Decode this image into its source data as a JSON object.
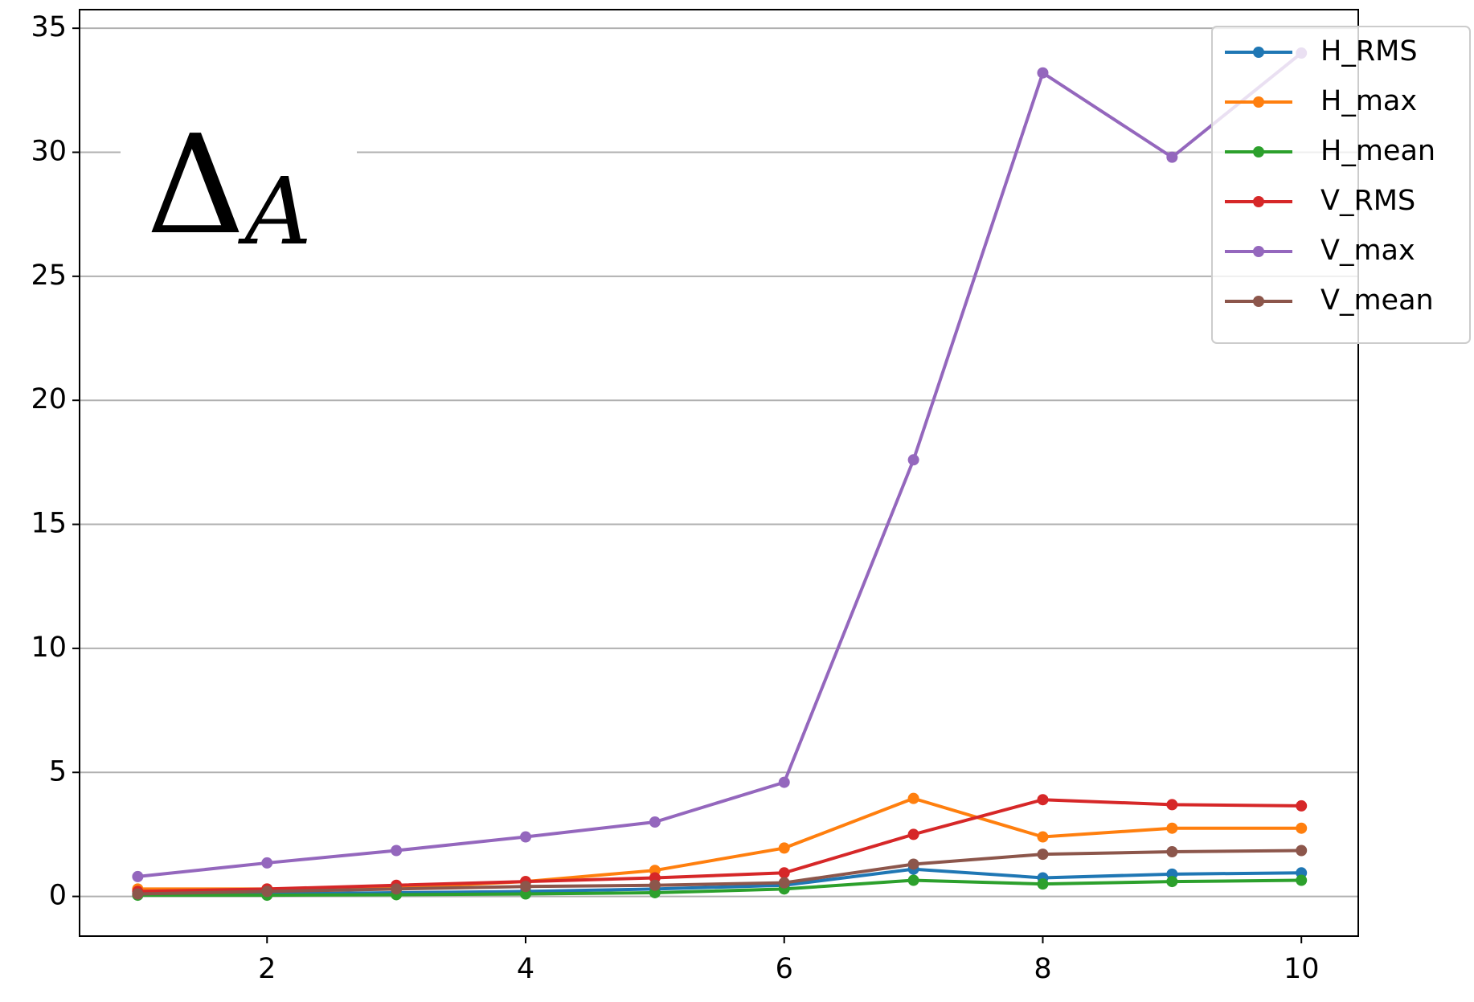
{
  "chart_data": {
    "type": "line",
    "annotation": {
      "symbol": "Δ",
      "subscript": "A"
    },
    "x": [
      1,
      2,
      3,
      4,
      5,
      6,
      7,
      8,
      9,
      10
    ],
    "series": [
      {
        "name": "H_RMS",
        "color": "#1f77b4",
        "values": [
          0.1,
          0.1,
          0.15,
          0.2,
          0.3,
          0.45,
          1.1,
          0.75,
          0.9,
          0.95
        ]
      },
      {
        "name": "H_max",
        "color": "#ff7f0e",
        "values": [
          0.3,
          0.3,
          0.35,
          0.6,
          1.05,
          1.95,
          3.95,
          2.4,
          2.75,
          2.75
        ]
      },
      {
        "name": "H_mean",
        "color": "#2ca02c",
        "values": [
          0.05,
          0.05,
          0.07,
          0.1,
          0.15,
          0.3,
          0.65,
          0.5,
          0.6,
          0.65
        ]
      },
      {
        "name": "V_RMS",
        "color": "#d62728",
        "values": [
          0.2,
          0.3,
          0.45,
          0.6,
          0.75,
          0.95,
          2.5,
          3.9,
          3.7,
          3.65
        ]
      },
      {
        "name": "V_max",
        "color": "#9467bd",
        "values": [
          0.8,
          1.35,
          1.85,
          2.4,
          3.0,
          4.6,
          17.6,
          33.2,
          29.8,
          34.0
        ]
      },
      {
        "name": "V_mean",
        "color": "#8c564b",
        "values": [
          0.1,
          0.2,
          0.3,
          0.4,
          0.45,
          0.55,
          1.3,
          1.7,
          1.8,
          1.85
        ]
      }
    ],
    "xlim": [
      0.55,
      10.44
    ],
    "xticks": [
      2,
      4,
      6,
      8,
      10
    ],
    "ylim": [
      -1.6,
      35.75
    ],
    "yticks": [
      0,
      5,
      10,
      15,
      20,
      25,
      30,
      35
    ],
    "grid": "y",
    "legend": "upper right"
  }
}
